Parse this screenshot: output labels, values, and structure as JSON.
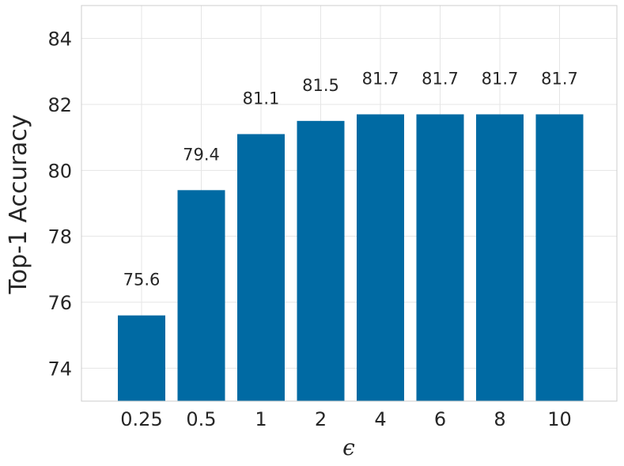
{
  "chart_data": {
    "type": "bar",
    "categories": [
      "0.25",
      "0.5",
      "1",
      "2",
      "4",
      "6",
      "8",
      "10"
    ],
    "values": [
      75.6,
      79.4,
      81.1,
      81.5,
      81.7,
      81.7,
      81.7,
      81.7
    ],
    "data_labels": [
      "75.6",
      "79.4",
      "81.1",
      "81.5",
      "81.7",
      "81.7",
      "81.7",
      "81.7"
    ],
    "xlabel": "ϵ",
    "ylabel": "Top-1 Accuracy",
    "ylim": [
      73,
      85
    ],
    "yticks": [
      74,
      76,
      78,
      80,
      82,
      84
    ],
    "grid": true,
    "bar_color": "#006aa3"
  }
}
